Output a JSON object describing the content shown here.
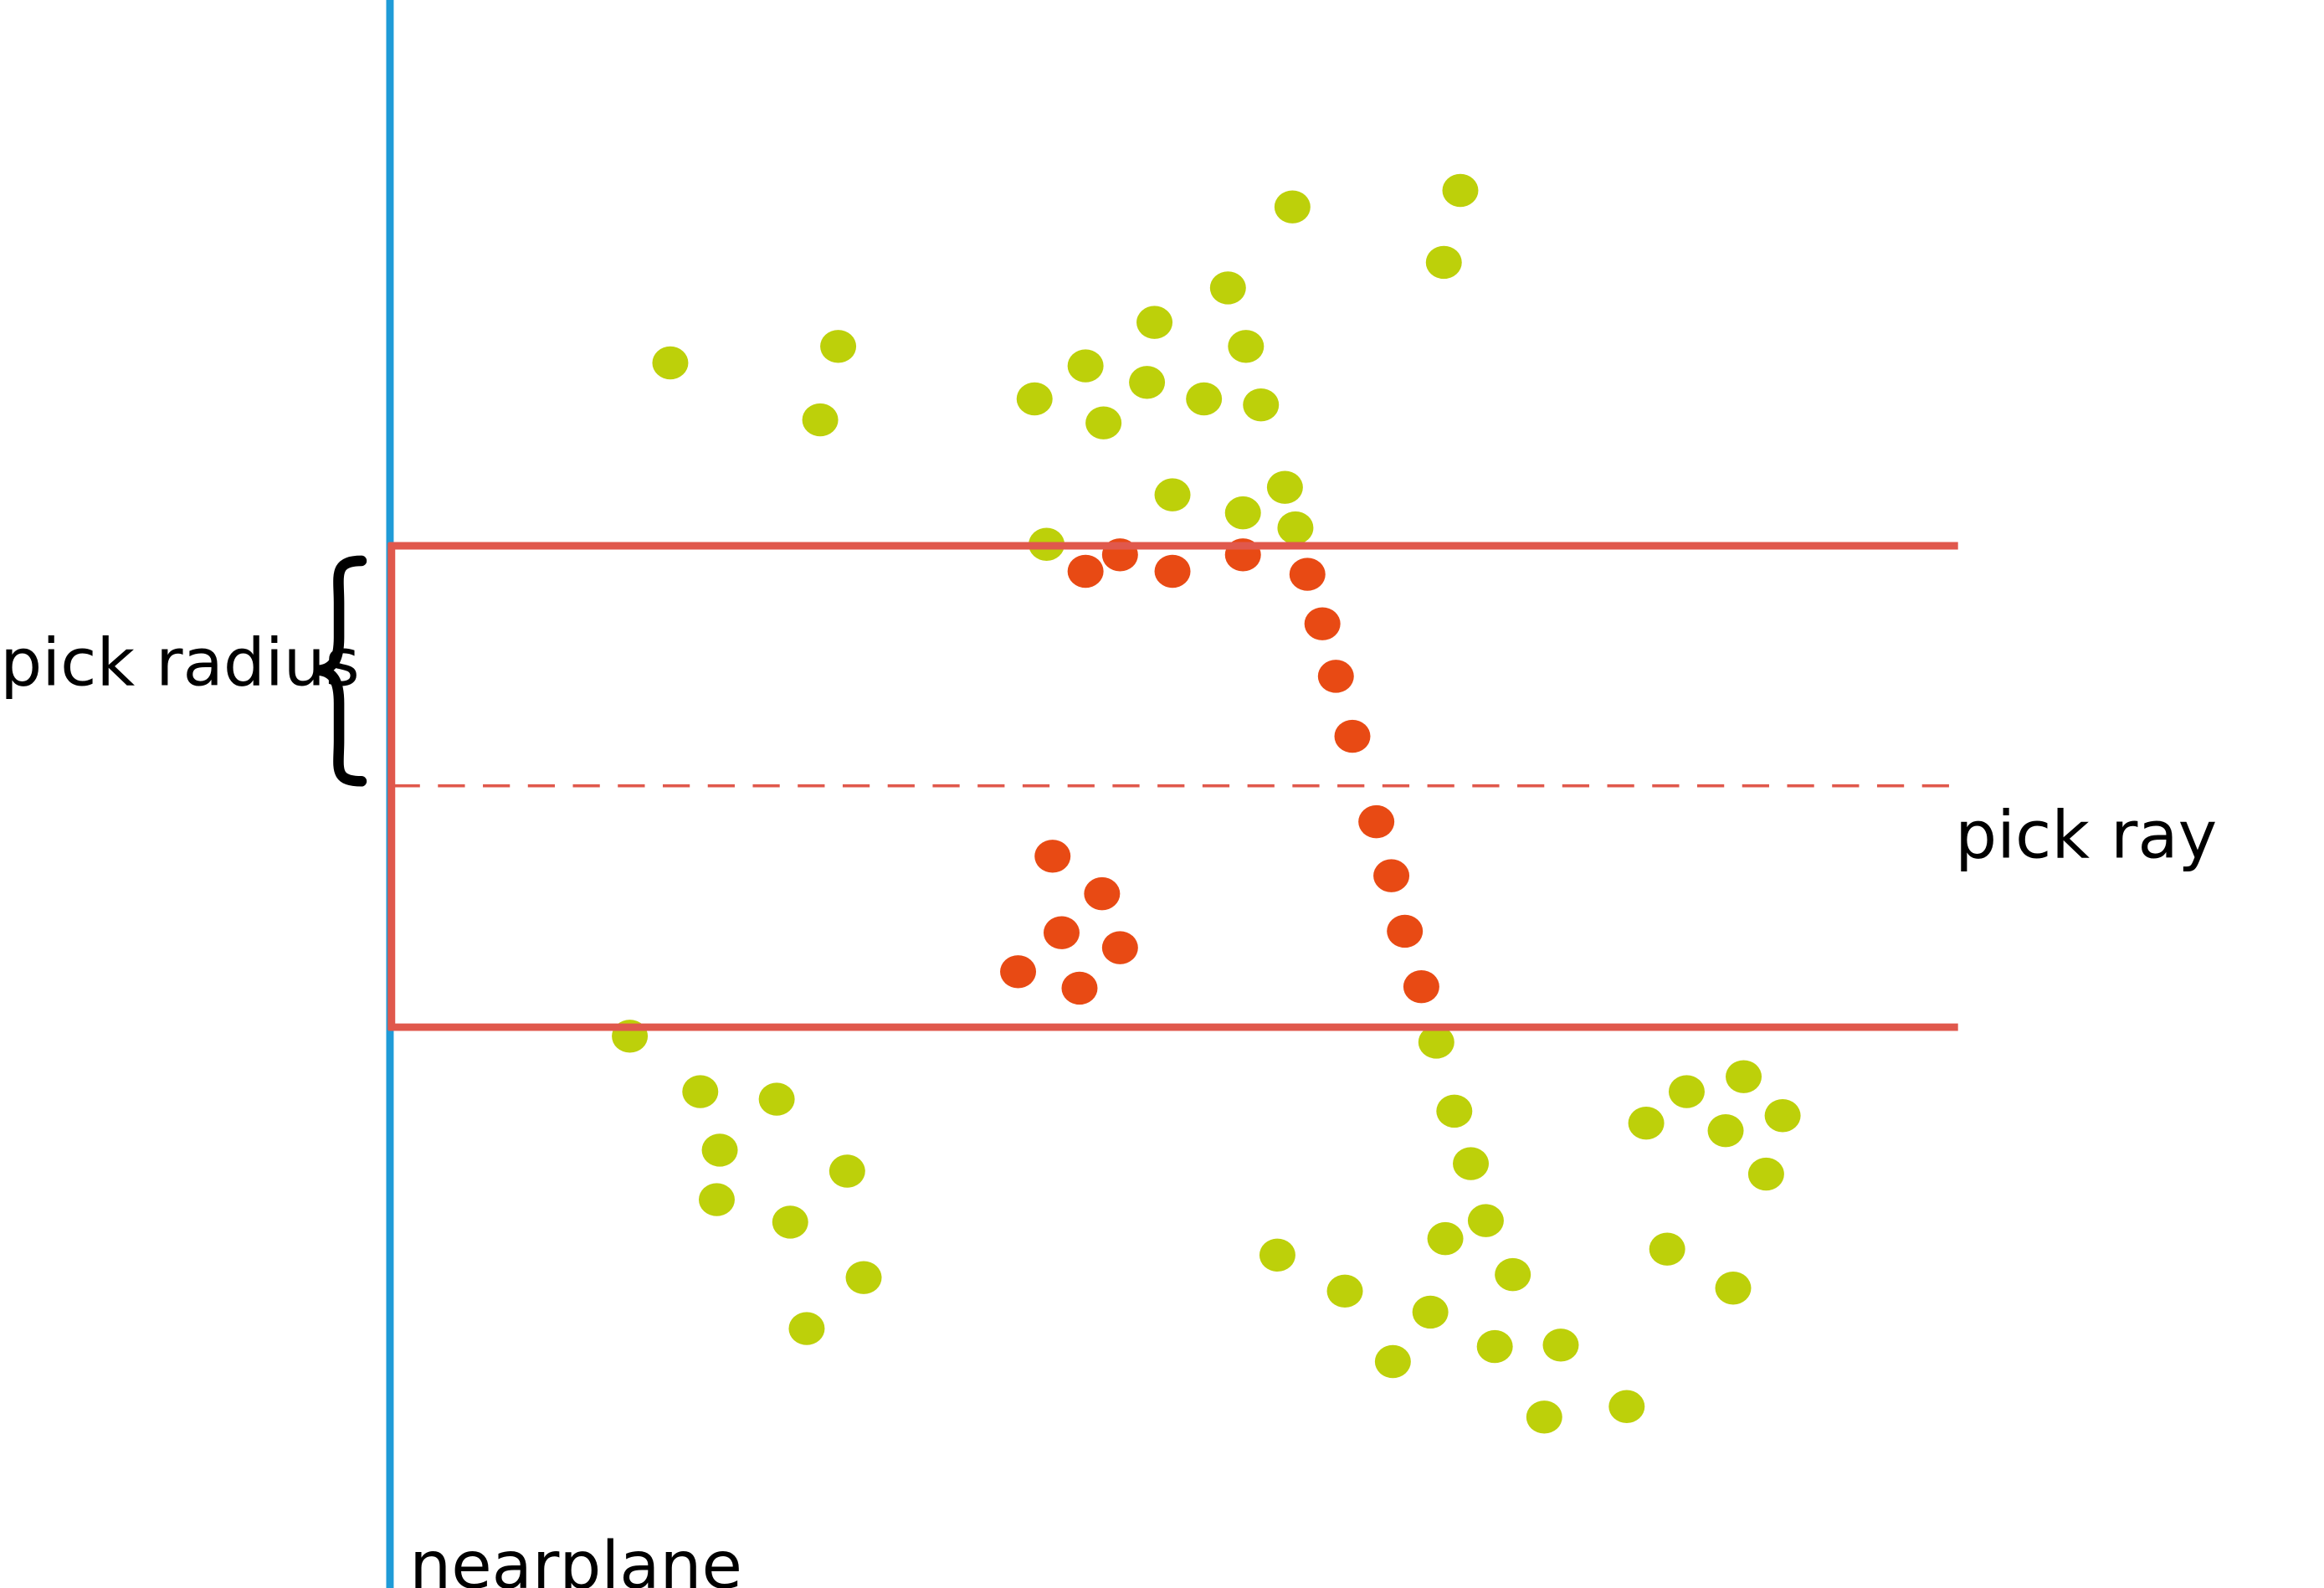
{
  "labels": {
    "pick_radius": "pick radius",
    "pick_ray": "pick ray",
    "nearplane": "nearplane"
  },
  "colors": {
    "nearplane": "#1f9bd7",
    "pick_box": "#e0584c",
    "pick_ray": "#e0584c",
    "point_outside": "#bdd00a",
    "point_inside": "#e84a14",
    "brace": "#000000",
    "text": "#000000"
  },
  "icons": {
    "brace": "curly-brace-icon"
  }
}
